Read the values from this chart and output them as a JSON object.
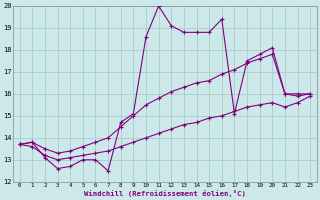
{
  "xlabel": "Windchill (Refroidissement éolien,°C)",
  "x_hours": [
    0,
    1,
    2,
    3,
    4,
    5,
    6,
    7,
    8,
    9,
    10,
    11,
    12,
    13,
    14,
    15,
    16,
    17,
    18,
    19,
    20,
    21,
    22,
    23
  ],
  "line_main": [
    13.7,
    13.8,
    13.1,
    12.6,
    12.7,
    13.0,
    13.0,
    12.5,
    14.7,
    15.1,
    18.6,
    20.0,
    19.1,
    18.8,
    18.8,
    18.8,
    19.4,
    15.1,
    17.5,
    17.8,
    18.1,
    16.0,
    15.9,
    16.0
  ],
  "line_upper": [
    13.7,
    13.8,
    13.5,
    13.3,
    13.4,
    13.6,
    13.8,
    14.0,
    14.5,
    15.0,
    15.5,
    15.8,
    16.1,
    16.3,
    16.5,
    16.6,
    16.9,
    17.1,
    17.4,
    17.6,
    17.8,
    16.0,
    16.0,
    16.0
  ],
  "line_lower": [
    13.7,
    13.6,
    13.2,
    13.0,
    13.1,
    13.2,
    13.3,
    13.4,
    13.6,
    13.8,
    14.0,
    14.2,
    14.4,
    14.6,
    14.7,
    14.9,
    15.0,
    15.2,
    15.4,
    15.5,
    15.6,
    15.4,
    15.6,
    15.9
  ],
  "line_color": "#800080",
  "bg_color": "#cce8e8",
  "grid_color": "#aacccc",
  "ylim_min": 12,
  "ylim_max": 20,
  "yticks": [
    12,
    13,
    14,
    15,
    16,
    17,
    18,
    19,
    20
  ]
}
